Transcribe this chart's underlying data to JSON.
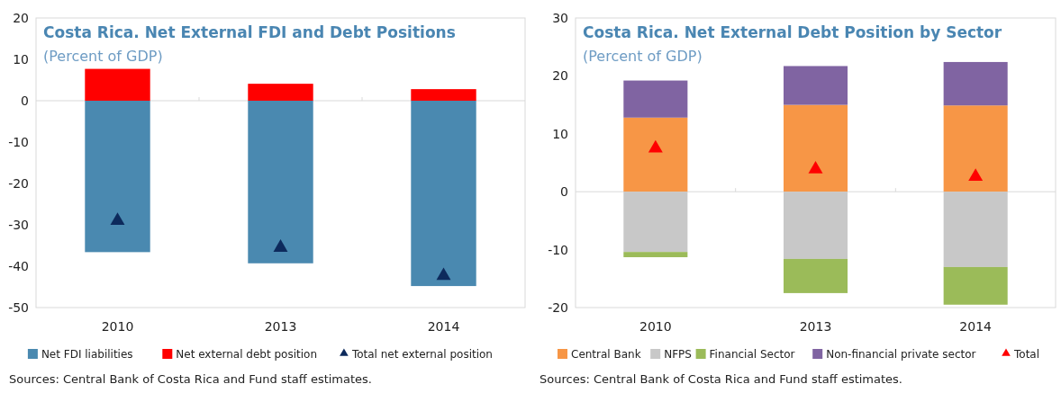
{
  "chart_data": [
    {
      "type": "bar",
      "title": "Costa Rica. Net External FDI and Debt Positions",
      "subtitle": "(Percent of GDP)",
      "categories": [
        "2010",
        "2013",
        "2014"
      ],
      "stacked": true,
      "ylim": [
        -50,
        20
      ],
      "yticks": [
        -50,
        -40,
        -30,
        -20,
        -10,
        0,
        10,
        20
      ],
      "legend": "bottom",
      "annotations": [
        "Sources: Central Bank of Costa Rica and Fund staff estimates."
      ],
      "series": [
        {
          "name": "Net FDI liabilities",
          "color": "#4a89b0",
          "values": [
            -36.6,
            -39.3,
            -44.8
          ]
        },
        {
          "name": "Net external debt position",
          "color": "#ff0000",
          "values": [
            7.7,
            4.1,
            2.8
          ]
        },
        {
          "name": "Total net external position",
          "type": "scatter",
          "marker": "triangle",
          "color": "#0d2a5c",
          "values": [
            -29,
            -35.5,
            -42.3
          ]
        }
      ]
    },
    {
      "type": "bar",
      "title": "Costa Rica. Net External Debt Position by Sector",
      "subtitle": "(Percent of GDP)",
      "categories": [
        "2010",
        "2013",
        "2014"
      ],
      "stacked": true,
      "ylim": [
        -20,
        30
      ],
      "yticks": [
        -20,
        -10,
        0,
        10,
        20,
        30
      ],
      "legend": "bottom",
      "annotations": [
        "Sources: Central Bank of Costa Rica and Fund staff estimates."
      ],
      "series": [
        {
          "name": "Central Bank",
          "color": "#f79646",
          "values": [
            12.8,
            15,
            14.9
          ]
        },
        {
          "name": "NFPS",
          "color": "#c8c8c8",
          "values": [
            -10.4,
            -11.6,
            -13
          ]
        },
        {
          "name": "Financial Sector",
          "color": "#9bbb59",
          "values": [
            -0.9,
            -5.9,
            -6.5
          ]
        },
        {
          "name": "Non-financial private sector",
          "color": "#8064a2",
          "values": [
            6.4,
            6.7,
            7.5
          ]
        },
        {
          "name": "Total",
          "type": "scatter",
          "marker": "triangle",
          "color": "#ff0000",
          "values": [
            7.5,
            3.9,
            2.6
          ]
        }
      ]
    }
  ]
}
